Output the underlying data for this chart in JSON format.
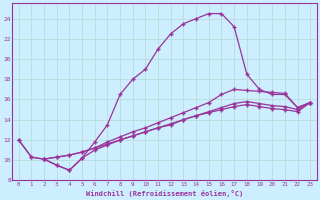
{
  "xlabel": "Windchill (Refroidissement éolien,°C)",
  "bg_color": "#cceeff",
  "line_color": "#993399",
  "grid_color": "#aaddcc",
  "xlim": [
    -0.5,
    23.5
  ],
  "ylim": [
    8,
    25.5
  ],
  "xticks": [
    0,
    1,
    2,
    3,
    4,
    5,
    6,
    7,
    8,
    9,
    10,
    11,
    12,
    13,
    14,
    15,
    16,
    17,
    18,
    19,
    20,
    21,
    22,
    23
  ],
  "yticks": [
    8,
    10,
    12,
    14,
    16,
    18,
    20,
    22,
    24
  ],
  "series": [
    {
      "x": [
        0,
        1,
        2,
        3,
        4,
        5,
        6,
        7,
        8,
        9,
        10,
        11,
        12,
        13,
        14,
        15,
        16,
        17,
        18,
        19,
        20,
        21,
        22,
        23
      ],
      "y": [
        12.0,
        10.3,
        10.1,
        9.5,
        9.0,
        10.2,
        11.8,
        13.5,
        16.5,
        18.0,
        19.0,
        21.0,
        22.5,
        23.5,
        24.0,
        24.5,
        24.5,
        23.2,
        18.5,
        17.0,
        16.5,
        16.5,
        15.2,
        15.7
      ]
    },
    {
      "x": [
        0,
        1,
        2,
        3,
        4,
        5,
        6,
        7,
        8,
        9,
        10,
        11,
        12,
        13,
        14,
        15,
        16,
        17,
        18,
        19,
        20,
        21,
        22,
        23
      ],
      "y": [
        12.0,
        10.3,
        10.1,
        10.3,
        10.5,
        10.8,
        11.2,
        11.8,
        12.3,
        12.8,
        13.2,
        13.7,
        14.2,
        14.7,
        15.2,
        15.7,
        16.5,
        17.0,
        16.9,
        16.8,
        16.7,
        16.6,
        15.2,
        15.7
      ]
    },
    {
      "x": [
        2,
        3,
        4,
        5,
        6,
        7,
        8,
        9,
        10,
        11,
        12,
        13,
        14,
        15,
        16,
        17,
        18,
        19,
        20,
        21,
        22,
        23
      ],
      "y": [
        10.1,
        10.3,
        10.5,
        10.8,
        11.2,
        11.6,
        12.0,
        12.4,
        12.8,
        13.2,
        13.6,
        14.0,
        14.4,
        14.8,
        15.2,
        15.6,
        15.8,
        15.6,
        15.4,
        15.3,
        15.0,
        15.7
      ]
    },
    {
      "x": [
        2,
        3,
        4,
        5,
        6,
        7,
        8,
        9,
        10,
        11,
        12,
        13,
        14,
        15,
        16,
        17,
        18,
        19,
        20,
        21,
        22,
        23
      ],
      "y": [
        10.1,
        9.5,
        9.0,
        10.2,
        11.0,
        11.5,
        12.0,
        12.4,
        12.8,
        13.2,
        13.5,
        14.0,
        14.4,
        14.7,
        15.0,
        15.3,
        15.5,
        15.3,
        15.1,
        15.0,
        14.8,
        15.7
      ]
    }
  ]
}
